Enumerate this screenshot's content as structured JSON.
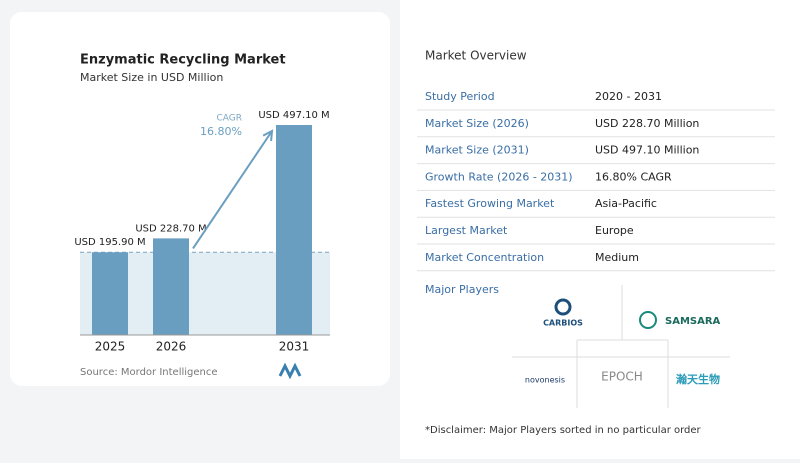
{
  "chart_data": {
    "type": "bar",
    "title": "Enzymatic Recycling Market",
    "subtitle": "Market Size in USD Million",
    "categories": [
      "2025",
      "2026",
      "2031"
    ],
    "values": [
      195.9,
      228.7,
      497.1
    ],
    "value_labels": [
      "USD 195.90 M",
      "USD 228.70 M",
      "USD 497.10 M"
    ],
    "color": "#6a9ec0",
    "annotations": [
      "CAGR",
      "16.80%"
    ],
    "source": "Source: Mordor Intelligence"
  },
  "overview": {
    "title": "Market Overview",
    "rows": [
      [
        "Study Period",
        "2020 - 2031"
      ],
      [
        "Market Size (2026)",
        "USD 228.70 Million"
      ],
      [
        "Market Size (2031)",
        "USD 497.10 Million"
      ],
      [
        "Growth Rate (2026 - 2031)",
        "16.80% CAGR"
      ],
      [
        "Fastest Growing Market",
        "Asia-Pacific"
      ],
      [
        "Largest Market",
        "Europe"
      ],
      [
        "Market Concentration",
        "Medium"
      ]
    ],
    "players_title": "Major Players",
    "players": [
      "CARBIOS",
      "SAMSARA",
      "novonesis",
      "EPOCH",
      "瀚天生物"
    ],
    "disclaimer": "*Disclaimer: Major Players sorted in no particular order"
  }
}
